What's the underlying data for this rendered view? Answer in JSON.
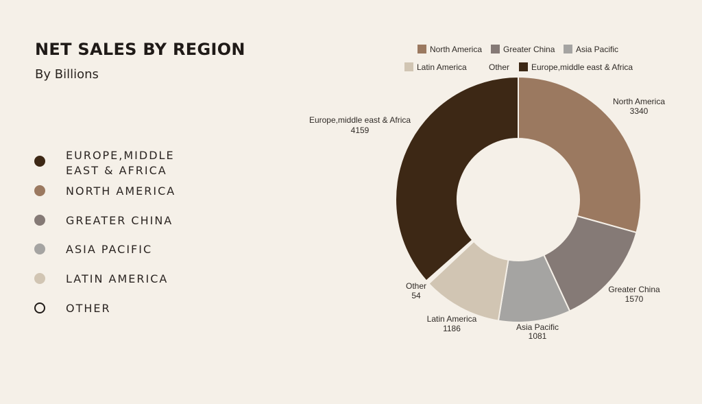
{
  "header": {
    "title": "NET SALES BY REGION",
    "subtitle": "By Billions"
  },
  "side_legend": [
    {
      "label": "EUROPE,MIDDLE EAST & AFRICA",
      "color": "#3d2815",
      "filled": true
    },
    {
      "label": "NORTH AMERICA",
      "color": "#9b7960",
      "filled": true
    },
    {
      "label": "GREATER CHINA",
      "color": "#857a76",
      "filled": true
    },
    {
      "label": "ASIA PACIFIC",
      "color": "#a5a4a2",
      "filled": true
    },
    {
      "label": "LATIN AMERICA",
      "color": "#d1c5b3",
      "filled": true
    },
    {
      "label": "OTHER",
      "color": "#1f1a17",
      "filled": false
    }
  ],
  "chart_data": {
    "type": "pie",
    "donut": true,
    "categories": [
      "North America",
      "Greater China",
      "Asia Pacific",
      "Latin America",
      "Other",
      "Europe,middle east & Africa"
    ],
    "values": [
      3340,
      1570,
      1081,
      1186,
      54,
      4159
    ],
    "colors": [
      "#9b7960",
      "#857a76",
      "#a5a4a2",
      "#d1c5b3",
      "#f5f0e8",
      "#3d2815"
    ],
    "legend_position": "top",
    "data_labels": true
  }
}
